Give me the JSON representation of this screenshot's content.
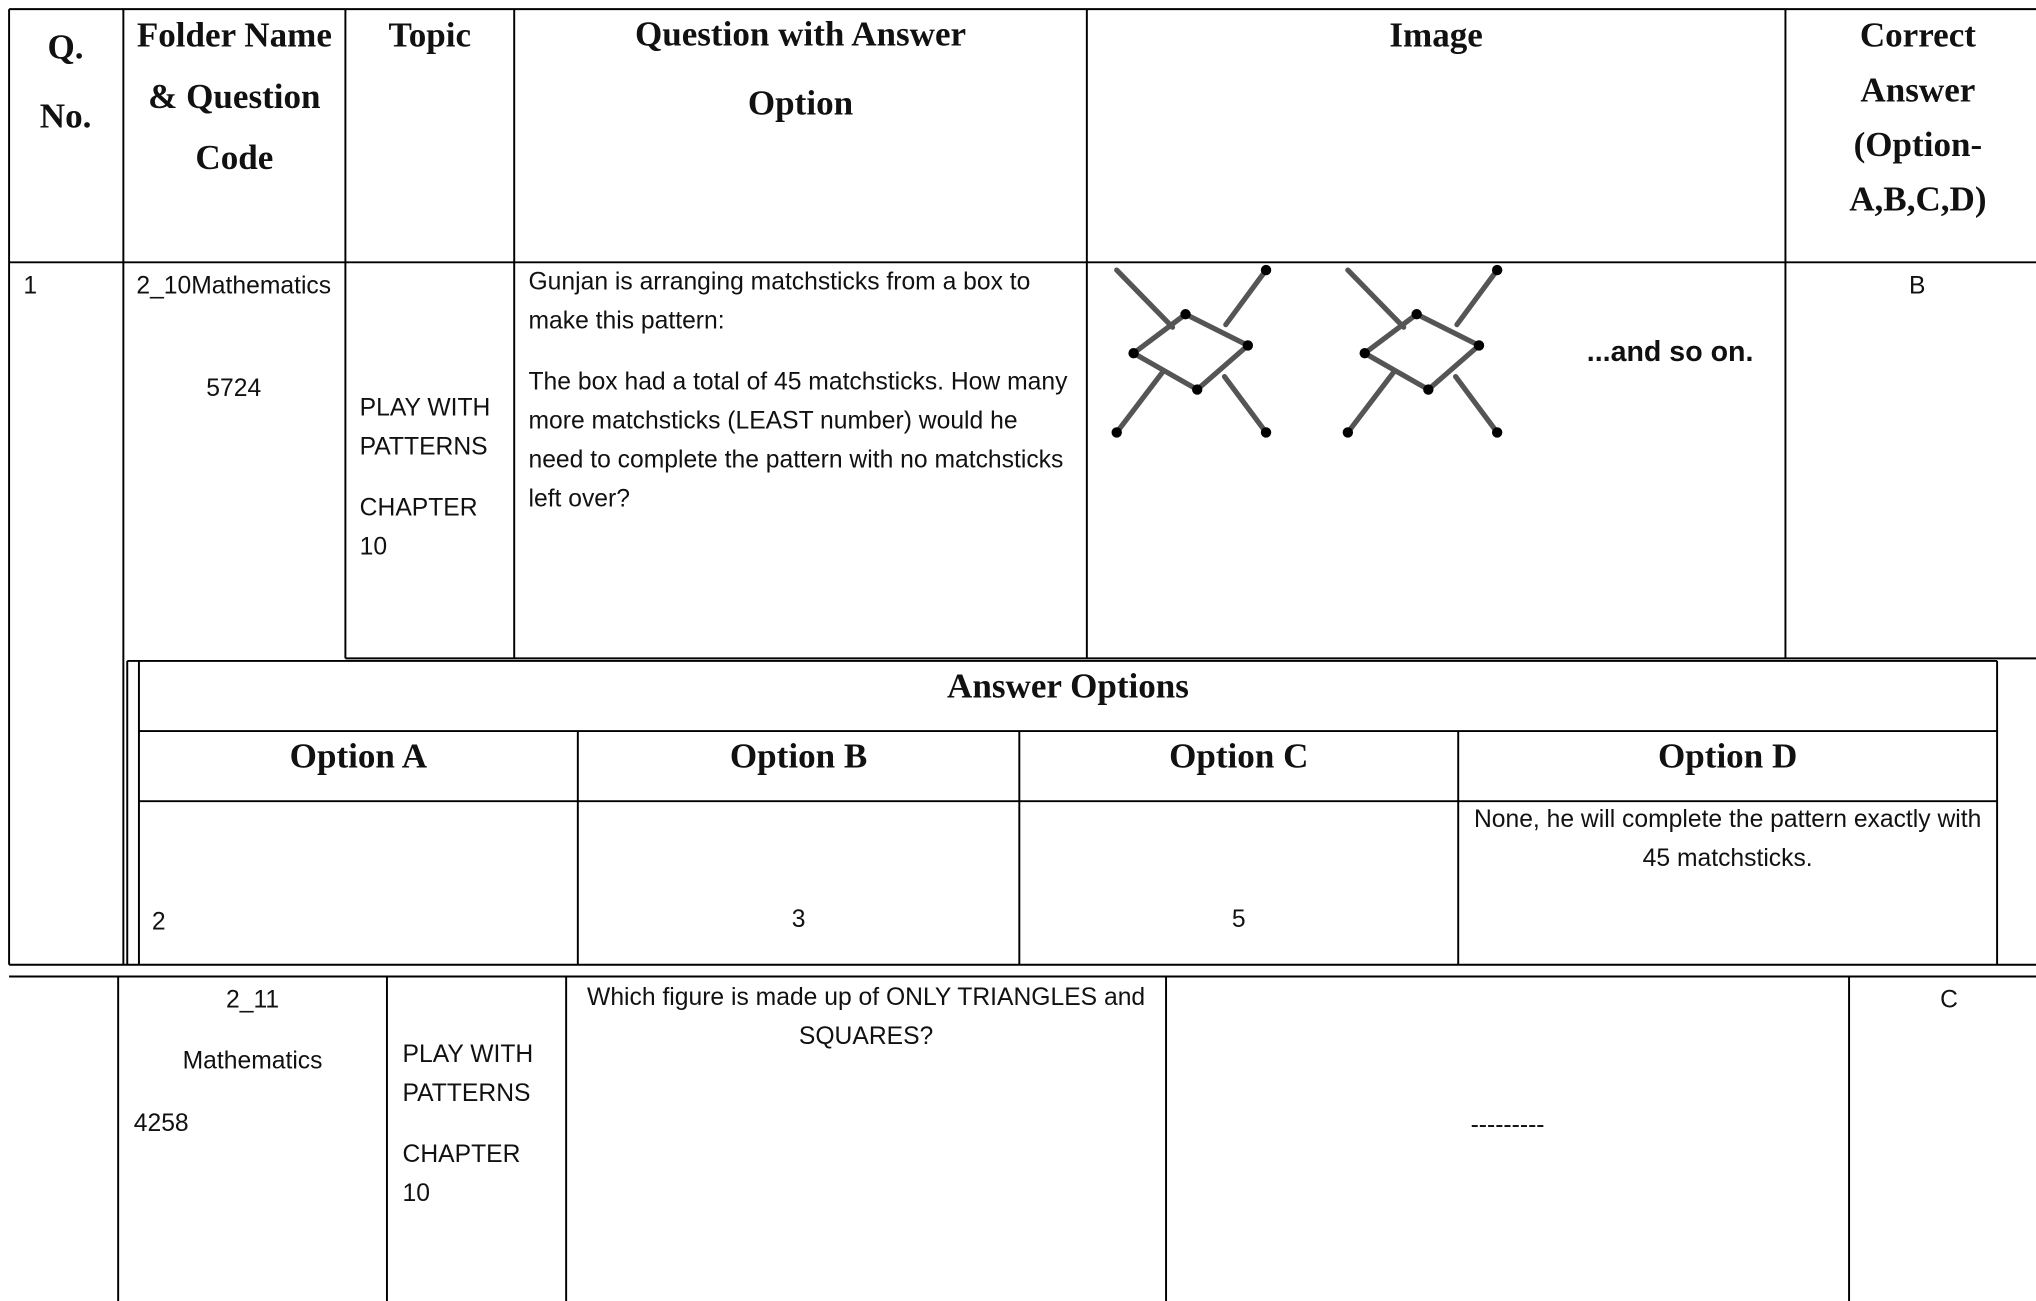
{
  "header": {
    "q_no": "Q. No.",
    "folder": "Folder Name & Question Code",
    "topic": "Topic",
    "question": "Question with Answer Option",
    "image": "Image",
    "correct": "Correct Answer (Option-A,B,C,D)"
  },
  "questions": [
    {
      "number": "1",
      "folder": "2_10Mathematics",
      "code": "5724",
      "topic": "PLAY WITH PATTERNS",
      "chapter": "CHAPTER 10",
      "question": [
        "Gunjan is arranging matchsticks from a box to make this pattern:",
        "The box had a total of 45 matchsticks. How many more matchsticks (LEAST number) would he need to complete the pattern with no matchsticks left over?"
      ],
      "image_caption": "...and so on.",
      "correct": "B",
      "answer_options": {
        "title": "Answer Options",
        "headers": [
          "Option A",
          "Option B",
          "Option C",
          "Option D"
        ],
        "values": [
          "2",
          "3",
          "5",
          "None, he will complete the pattern exactly with 45 matchsticks."
        ]
      }
    },
    {
      "folder": "2_11",
      "subject": "Mathematics",
      "code": "4258",
      "topic": "PLAY WITH PATTERNS",
      "chapter": "CHAPTER 10",
      "question": "Which figure is made up of ONLY TRIANGLES and SQUARES?",
      "image": "---------",
      "correct": "C"
    }
  ]
}
